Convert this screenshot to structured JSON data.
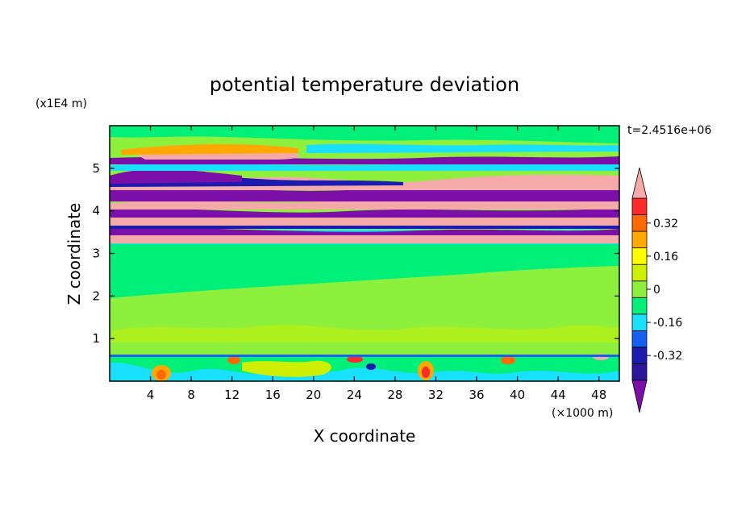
{
  "chart_data": {
    "type": "heatmap",
    "title": "potential temperature deviation",
    "xlabel": "X coordinate",
    "ylabel": "Z coordinate",
    "x_unit_label": "(×1000 m)",
    "y_unit_label": "(x1E4 m)",
    "time_label": "t=2.4516e+06",
    "xlim": [
      0,
      50
    ],
    "ylim": [
      0,
      6
    ],
    "x_ticks": [
      4,
      8,
      12,
      16,
      20,
      24,
      28,
      32,
      36,
      40,
      44,
      48
    ],
    "y_ticks": [
      1,
      2,
      3,
      4,
      5
    ],
    "colorbar": {
      "levels": [
        -0.48,
        -0.4,
        -0.32,
        -0.24,
        -0.16,
        -0.08,
        0,
        0.08,
        0.16,
        0.24,
        0.32,
        0.4,
        0.48
      ],
      "colors": [
        "#7b0fa8",
        "#2d1699",
        "#1b1bb0",
        "#1560f0",
        "#19e0ff",
        "#00f07a",
        "#8cf03c",
        "#cef000",
        "#ffff00",
        "#ffa800",
        "#ff6a00",
        "#ff2a2a",
        "#f5aaaa"
      ],
      "tick_labels": [
        "0.32",
        "0.16",
        "0",
        "-0.16",
        "-0.32"
      ]
    },
    "field_description_by_height": [
      {
        "z_range": [
          0,
          0.6
        ],
        "pattern": "mixed cyan/green with warm orange-red cells near x=4-6, 30-32, 38-40, 48"
      },
      {
        "z_range": [
          0.6,
          3.2
        ],
        "pattern": "green to yellow-green, near zero deviation"
      },
      {
        "z_range": [
          3.2,
          5.4
        ],
        "pattern": "alternating horizontal bands of pink (positive) and purple/blue (negative)"
      },
      {
        "z_range": [
          5.4,
          6.0
        ],
        "pattern": "green with cyan patches"
      }
    ]
  }
}
